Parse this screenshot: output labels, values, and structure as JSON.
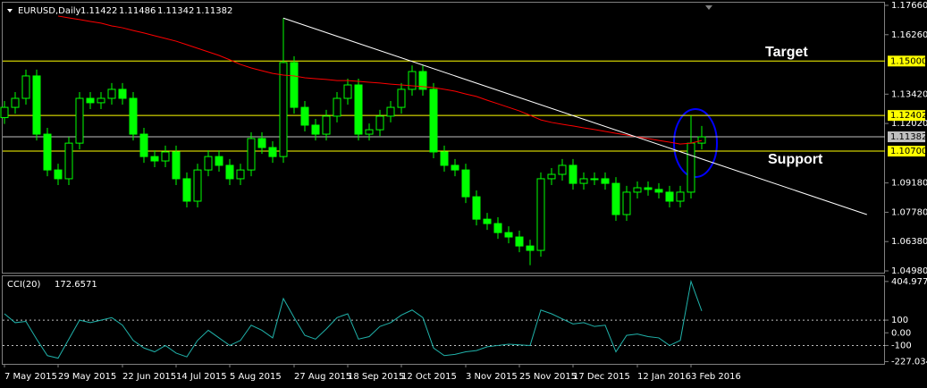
{
  "chart_data": {
    "type": "candlestick",
    "title": "EURUSD,Daily",
    "header_values": [
      1.11422,
      1.11486,
      1.11342,
      1.11382
    ],
    "categories": [
      "7 May 2015",
      null,
      null,
      null,
      null,
      "29 May 2015",
      null,
      null,
      null,
      null,
      null,
      "22 Jun 2015",
      null,
      null,
      null,
      null,
      "14 Jul 2015",
      null,
      null,
      null,
      null,
      "5 Aug 2015",
      null,
      null,
      null,
      null,
      null,
      "27 Aug 2015",
      null,
      null,
      null,
      null,
      "18 Sep 2015",
      null,
      null,
      null,
      null,
      "12 Oct 2015",
      null,
      null,
      null,
      null,
      null,
      "3 Nov 2015",
      null,
      null,
      null,
      null,
      "25 Nov 2015",
      null,
      null,
      null,
      null,
      "17 Dec 2015",
      null,
      null,
      null,
      null,
      null,
      "12 Jan 2016",
      null,
      null,
      null,
      null,
      "3 Feb 2016",
      null
    ],
    "open": [
      1.123,
      1.1279,
      1.1322,
      1.1429,
      1.1151,
      1.098,
      1.0938,
      1.1108,
      1.1322,
      1.1301,
      1.1322,
      1.1365,
      1.1322,
      1.1151,
      1.1044,
      1.1023,
      1.1066,
      1.0938,
      1.0831,
      1.098,
      1.1044,
      1.1002,
      1.0938,
      1.098,
      1.113,
      1.1087,
      1.1044,
      1.1493,
      1.1279,
      1.1194,
      1.1151,
      1.1237,
      1.1322,
      1.1386,
      1.1151,
      1.1172,
      1.1237,
      1.1279,
      1.1365,
      1.145,
      1.1365,
      1.1066,
      1.1002,
      1.098,
      1.0852,
      1.0745,
      1.0724,
      1.0681,
      1.066,
      1.0617,
      1.0596,
      1.0938,
      1.0959,
      1.1002,
      1.0916,
      1.0938,
      1.0938,
      1.0916,
      1.0767,
      1.0874,
      1.0895,
      1.0887,
      1.0874,
      1.0831,
      1.0874,
      1.1108
    ],
    "high": [
      1.1309,
      1.1352,
      1.1459,
      1.1459,
      1.1181,
      1.101,
      1.1138,
      1.1352,
      1.1352,
      1.1352,
      1.1395,
      1.1395,
      1.1352,
      1.1181,
      1.1074,
      1.1096,
      1.1096,
      1.0968,
      1.101,
      1.1074,
      1.1074,
      1.1032,
      1.101,
      1.116,
      1.116,
      1.1117,
      1.1705,
      1.1523,
      1.1309,
      1.1224,
      1.1267,
      1.1352,
      1.1416,
      1.1416,
      1.1202,
      1.1267,
      1.1309,
      1.1395,
      1.1479,
      1.148,
      1.1395,
      1.1096,
      1.1032,
      1.101,
      1.0882,
      1.0775,
      1.0754,
      1.0711,
      1.069,
      1.0647,
      1.0968,
      1.0989,
      1.1032,
      1.1032,
      1.0968,
      1.0968,
      1.0968,
      1.0946,
      1.0904,
      1.0925,
      1.0925,
      1.0917,
      1.0904,
      1.0904,
      1.124,
      1.119
    ],
    "low": [
      1.12,
      1.1249,
      1.1292,
      1.1121,
      1.095,
      1.0908,
      1.0908,
      1.1078,
      1.1271,
      1.1271,
      1.1292,
      1.1292,
      1.1121,
      1.1014,
      1.0993,
      1.0993,
      1.0908,
      1.0801,
      1.0801,
      1.095,
      1.0972,
      1.0908,
      1.0908,
      1.095,
      1.1057,
      1.1014,
      1.1014,
      1.1249,
      1.1164,
      1.1121,
      1.1121,
      1.1207,
      1.1292,
      1.1121,
      1.1121,
      1.1142,
      1.1207,
      1.1249,
      1.1335,
      1.1335,
      1.1036,
      1.0972,
      1.095,
      1.0822,
      1.0715,
      1.0694,
      1.0651,
      1.063,
      1.0587,
      1.0525,
      1.0566,
      1.0908,
      1.0929,
      1.0886,
      1.0886,
      1.0908,
      1.0886,
      1.0737,
      1.0737,
      1.0844,
      1.0857,
      1.0844,
      1.0801,
      1.0801,
      1.0844,
      1.1078
    ],
    "close": [
      1.1279,
      1.1322,
      1.1429,
      1.1151,
      1.098,
      1.0938,
      1.1108,
      1.1322,
      1.1301,
      1.1322,
      1.1365,
      1.1322,
      1.1151,
      1.1044,
      1.1023,
      1.1066,
      1.0938,
      1.0831,
      1.098,
      1.1044,
      1.1002,
      1.0938,
      1.098,
      1.113,
      1.1087,
      1.1044,
      1.1493,
      1.1279,
      1.1194,
      1.1151,
      1.1237,
      1.1322,
      1.1386,
      1.1151,
      1.1172,
      1.1237,
      1.1279,
      1.1365,
      1.145,
      1.1365,
      1.1066,
      1.1002,
      1.098,
      1.0852,
      1.0745,
      1.0724,
      1.0681,
      1.066,
      1.0617,
      1.0596,
      1.0938,
      1.0959,
      1.1002,
      1.0916,
      1.0938,
      1.0938,
      1.0916,
      1.0767,
      1.0874,
      1.0895,
      1.0887,
      1.0874,
      1.0831,
      1.0874,
      1.1108,
      1.1138
    ],
    "color": "#00ff00",
    "ylim": [
      1.04895,
      1.17916
    ],
    "yticks": [
      {
        "value": 1.1766,
        "label": "1.17660"
      },
      {
        "value": 1.1626,
        "label": "1.16260"
      },
      {
        "value": 1.1342,
        "label": "1.13420"
      },
      {
        "value": 1.1202,
        "label": "1.12020"
      },
      {
        "value": 1.0918,
        "label": "1.09180"
      },
      {
        "value": 1.0778,
        "label": "1.07780"
      },
      {
        "value": 1.0638,
        "label": "1.06380"
      },
      {
        "value": 1.0498,
        "label": "1.04980"
      }
    ],
    "moving_average": {
      "color": "#ff0000",
      "values": [
        null,
        null,
        null,
        null,
        null,
        1.1715,
        1.1706,
        1.1698,
        1.1689,
        1.1681,
        1.1668,
        1.1659,
        1.1646,
        1.1634,
        1.1621,
        1.1608,
        1.1595,
        1.1578,
        1.1561,
        1.1544,
        1.1527,
        1.1506,
        1.1484,
        1.1467,
        1.1454,
        1.1441,
        1.1433,
        1.1429,
        1.142,
        1.1416,
        1.1412,
        1.1407,
        1.1407,
        1.1403,
        1.1399,
        1.1395,
        1.139,
        1.1386,
        1.1382,
        1.1378,
        1.1373,
        1.1365,
        1.1356,
        1.1343,
        1.1331,
        1.1313,
        1.1296,
        1.1279,
        1.1262,
        1.1241,
        1.1219,
        1.1207,
        1.1198,
        1.119,
        1.1181,
        1.1173,
        1.1164,
        1.1155,
        1.1147,
        1.1138,
        1.113,
        1.1121,
        1.1113,
        1.1104,
        1.1108,
        1.1121
      ]
    },
    "trendline": {
      "color": "#ffffff",
      "x": [
        26,
        80.4
      ],
      "y": [
        1.1705,
        1.0767
      ]
    },
    "levels": [
      {
        "value": 1.15,
        "label": "1.15000",
        "color": "#ffff00"
      },
      {
        "value": 1.12402,
        "color": "#ffff00"
      },
      {
        "value": 1.11382,
        "color": "#c0c0c0"
      },
      {
        "value": 1.107,
        "label": "1.10700",
        "color": "#ffff00"
      }
    ],
    "annotations": [
      "Target",
      "Support"
    ],
    "indicator": {
      "type": "line",
      "title": "CCI(20)",
      "color": "#20b2aa",
      "values": [
        150,
        80,
        90,
        -50,
        -180,
        -200,
        -50,
        100,
        80,
        100,
        120,
        60,
        -60,
        -120,
        -150,
        -100,
        -160,
        -190,
        -60,
        20,
        -40,
        -100,
        -60,
        60,
        20,
        -40,
        270,
        120,
        -20,
        -50,
        30,
        120,
        150,
        -50,
        -30,
        50,
        80,
        140,
        180,
        120,
        -120,
        -180,
        -170,
        -150,
        -140,
        -110,
        -100,
        -90,
        -95,
        -100,
        180,
        150,
        110,
        70,
        80,
        50,
        60,
        -150,
        -20,
        -10,
        -30,
        -40,
        -100,
        -60,
        404.9774,
        172.6571
      ],
      "ylim": [
        -245,
        425
      ],
      "yticks": [
        404.9774,
        100,
        {
          "value": 0,
          "label": "0.00"
        },
        -100,
        -227.0344
      ],
      "levels": [
        100,
        -100
      ]
    }
  }
}
